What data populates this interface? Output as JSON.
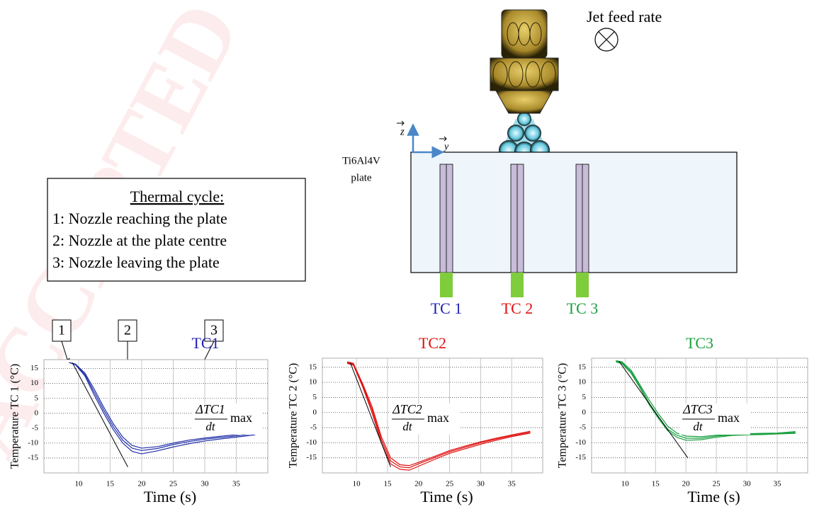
{
  "diagram": {
    "watermark": "ACCEPTED",
    "jet_label": "Jet feed rate",
    "axis_z": "z",
    "axis_y": "y",
    "plate_label": [
      "Ti6Al4V",
      "plate"
    ],
    "legend": {
      "title": "Thermal cycle:",
      "items": [
        "1: Nozzle reaching the plate",
        "2: Nozzle at the plate centre",
        "3: Nozzle leaving the plate"
      ]
    },
    "thermocouples": [
      {
        "label": "TC 1",
        "color": "#1f1fb4"
      },
      {
        "label": "TC 2",
        "color": "#e01010"
      },
      {
        "label": "TC 3",
        "color": "#1aa040"
      }
    ]
  },
  "chart_data": [
    {
      "type": "line",
      "title": "TC1",
      "title_color": "#1f1fb4",
      "ylabel": "Temperature TC 1 (°C)",
      "xlabel": "Time (s)",
      "xlim": [
        4.5,
        40
      ],
      "ylim": [
        -20,
        18
      ],
      "xticks": [
        10,
        15,
        20,
        25,
        30,
        35
      ],
      "yticks": [
        15,
        10,
        5,
        0,
        -5,
        -10,
        -15
      ],
      "grid": true,
      "x": [
        8.5,
        9.5,
        11,
        12.5,
        14,
        15.5,
        17,
        18.5,
        20,
        22.5,
        25,
        27.5,
        30,
        32.5,
        35,
        38
      ],
      "series": [
        {
          "color": "#1f2fa8",
          "values": [
            17,
            16.5,
            13.5,
            8,
            2,
            -3.5,
            -8,
            -10.8,
            -11.7,
            -11.2,
            -10,
            -9.0,
            -8.3,
            -7.7,
            -7.2,
            -6.3
          ]
        },
        {
          "color": "#1f2fa8",
          "values": [
            17,
            16.5,
            13,
            7,
            1,
            -4.5,
            -9,
            -11.7,
            -12.5,
            -11.8,
            -10.5,
            -9.5,
            -8.7,
            -8.1,
            -7.6,
            -6.8
          ]
        },
        {
          "color": "#1f2fa8",
          "values": [
            17,
            16.3,
            12.5,
            6,
            0,
            -5.5,
            -10,
            -12.8,
            -13.6,
            -12.6,
            -11.3,
            -10.2,
            -9.3,
            -8.6,
            -8,
            -7.2
          ]
        }
      ],
      "tangent": {
        "x": [
          9,
          17.8
        ],
        "values": [
          17,
          -18
        ]
      },
      "rate_label": {
        "numerator": "ΔTC1",
        "denominator": "dt",
        "suffix": "max"
      },
      "markers": [
        "1",
        "2",
        "3"
      ]
    },
    {
      "type": "line",
      "title": "TC2",
      "title_color": "#e01010",
      "ylabel": "Temperature TC 2 (°C)",
      "xlabel": "Time (s)",
      "xlim": [
        4.5,
        40
      ],
      "ylim": [
        -20,
        18
      ],
      "xticks": [
        10,
        15,
        20,
        25,
        30,
        35
      ],
      "yticks": [
        15,
        10,
        5,
        0,
        -5,
        -10,
        -15
      ],
      "grid": true,
      "x": [
        8.5,
        9.5,
        11,
        12.5,
        14,
        15.5,
        17,
        18.5,
        20,
        22.5,
        25,
        27.5,
        30,
        32.5,
        35,
        38
      ],
      "series": [
        {
          "color": "#e01010",
          "values": [
            16.8,
            16.3,
            9.5,
            2,
            -8,
            -15,
            -17.3,
            -17.6,
            -16.5,
            -14.6,
            -12.6,
            -11.1,
            -9.7,
            -8.5,
            -7.4,
            -6.2
          ]
        },
        {
          "color": "#e01010",
          "values": [
            16.5,
            16,
            9,
            1,
            -9,
            -16,
            -18,
            -18.3,
            -17,
            -15,
            -13,
            -11.5,
            -10,
            -8.8,
            -7.7,
            -6.5
          ]
        },
        {
          "color": "#e01010",
          "values": [
            16.3,
            15.7,
            8.5,
            0,
            -10,
            -17,
            -18.8,
            -19.1,
            -17.8,
            -15.6,
            -13.5,
            -12,
            -10.5,
            -9.2,
            -8,
            -6.8
          ]
        }
      ],
      "tangent": {
        "x": [
          9,
          15.5
        ],
        "values": [
          16.5,
          -18
        ]
      },
      "rate_label": {
        "numerator": "ΔTC2",
        "denominator": "dt",
        "suffix": "max"
      }
    },
    {
      "type": "line",
      "title": "TC3",
      "title_color": "#1aa040",
      "ylabel": "Temperature TC 3 (°C)",
      "xlabel": "Time (s)",
      "xlim": [
        4.5,
        40
      ],
      "ylim": [
        -20,
        18
      ],
      "xticks": [
        10,
        15,
        20,
        25,
        30,
        35
      ],
      "yticks": [
        15,
        10,
        5,
        0,
        -5,
        -10,
        -15
      ],
      "grid": true,
      "x": [
        8.5,
        9.5,
        11,
        12.5,
        14,
        15.5,
        17,
        18.5,
        20,
        22.5,
        25,
        27.5,
        30,
        32.5,
        35,
        38
      ],
      "series": [
        {
          "color": "#1aa040",
          "values": [
            17.2,
            16.8,
            14,
            9,
            4,
            -0.5,
            -4.5,
            -6.8,
            -7.8,
            -8,
            -7.5,
            -7.2,
            -7,
            -6.9,
            -6.8,
            -6.3
          ]
        },
        {
          "color": "#1aa040",
          "values": [
            17,
            16.5,
            13.5,
            8.5,
            3,
            -1.5,
            -5.5,
            -7.5,
            -8.5,
            -8.5,
            -7.8,
            -7.4,
            -7.2,
            -7.1,
            -7,
            -6.6
          ]
        },
        {
          "color": "#1aa040",
          "values": [
            16.8,
            16.2,
            13,
            8,
            2.5,
            -2,
            -6,
            -8.2,
            -9.2,
            -9,
            -8.2,
            -7.6,
            -7.4,
            -7.3,
            -7.1,
            -6.9
          ]
        }
      ],
      "tangent": {
        "x": [
          9,
          20.3
        ],
        "values": [
          17,
          -15
        ]
      },
      "rate_label": {
        "numerator": "ΔTC3",
        "denominator": "dt",
        "suffix": "max"
      }
    }
  ]
}
